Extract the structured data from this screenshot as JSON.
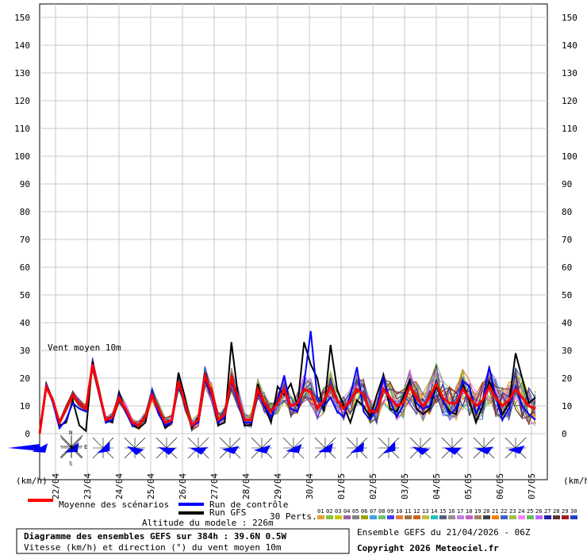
{
  "chart_data": {
    "type": "line",
    "title": "Diagramme des ensembles GEFS sur 384h : 39.6N 0.5W",
    "subtitle": "Vitesse (km/h) et direction (°) du vent moyen 10m",
    "series_label": "Vent moyen 10m",
    "altitude": "Altitude du modele : 226m",
    "run_info": "Ensemble GEFS du 21/04/2026 - 06Z",
    "copyright": "Copyright 2026 Meteociel.fr",
    "unit_left": "(km/h)",
    "unit_right": "(km/h)",
    "ylim": [
      0,
      150
    ],
    "y_ticks": [
      "0",
      "10",
      "20",
      "30",
      "40",
      "50",
      "60",
      "70",
      "80",
      "90",
      "100",
      "110",
      "120",
      "130",
      "140",
      "150"
    ],
    "x_ticks": [
      "22/04",
      "23/04",
      "24/04",
      "25/04",
      "26/04",
      "27/04",
      "28/04",
      "29/04",
      "30/04",
      "01/05",
      "02/05",
      "03/05",
      "04/05",
      "05/05",
      "06/05",
      "07/05"
    ],
    "x_tick_steps": [
      4,
      12,
      20,
      28,
      36,
      44,
      52,
      60,
      68,
      76,
      84,
      92,
      100,
      108,
      116,
      124
    ],
    "x_start_label": "21/04 06Z",
    "x_step_hours": 3,
    "grid": true,
    "legend": [
      {
        "label": "Moyenne des scénarios",
        "color": "#ff0000"
      },
      {
        "label": "Run de contrôle",
        "color": "#0000ff"
      },
      {
        "label": "Run GFS",
        "color": "#000000"
      }
    ],
    "perts_label": "30 Perts.",
    "pert_ids": [
      "01",
      "02",
      "03",
      "04",
      "05",
      "06",
      "07",
      "08",
      "09",
      "10",
      "11",
      "12",
      "13",
      "14",
      "15",
      "16",
      "17",
      "18",
      "19",
      "20",
      "21",
      "22",
      "23",
      "24",
      "25",
      "26",
      "27",
      "28",
      "29",
      "30"
    ],
    "pert_colors": [
      "#e8a033",
      "#88c040",
      "#c8c800",
      "#a060a0",
      "#808080",
      "#a0a000",
      "#40a0e0",
      "#70c070",
      "#4040ff",
      "#e08040",
      "#a07040",
      "#d06020",
      "#c0c040",
      "#20c0c0",
      "#506080",
      "#909090",
      "#c080e0",
      "#c060c0",
      "#a08060",
      "#404040",
      "#ff8000",
      "#4060c0",
      "#a0c040",
      "#ff80ff",
      "#60c060",
      "#c060ff",
      "#2020a0",
      "#603030",
      "#a02020",
      "#2040c0"
    ],
    "mean": [
      0,
      17,
      12,
      4,
      9,
      14,
      11,
      9,
      25,
      15,
      5,
      6,
      13,
      9,
      4,
      3,
      6,
      14,
      9,
      4,
      5,
      19,
      11,
      3,
      5,
      21,
      15,
      5,
      7,
      20,
      13,
      5,
      5,
      16,
      11,
      8,
      11,
      16,
      10,
      11,
      16,
      15,
      9,
      12,
      17,
      12,
      9,
      12,
      16,
      14,
      8,
      8,
      16,
      13,
      10,
      11,
      17,
      13,
      10,
      13,
      18,
      13,
      11,
      11,
      16,
      13,
      10,
      12,
      17,
      13,
      10,
      12,
      16,
      13,
      10,
      9
    ],
    "control": [
      1,
      18,
      11,
      2,
      5,
      11,
      9,
      8,
      24,
      14,
      4,
      5,
      14,
      8,
      3,
      3,
      6,
      15,
      7,
      3,
      4,
      18,
      10,
      3,
      4,
      20,
      14,
      4,
      6,
      19,
      12,
      4,
      4,
      15,
      10,
      6,
      12,
      21,
      9,
      8,
      18,
      37,
      13,
      10,
      13,
      8,
      6,
      14,
      24,
      8,
      5,
      10,
      20,
      12,
      6,
      10,
      18,
      11,
      9,
      10,
      19,
      12,
      7,
      9,
      19,
      17,
      7,
      12,
      24,
      13,
      5,
      9,
      17,
      10,
      7,
      5
    ],
    "gfs": [
      0,
      18,
      12,
      3,
      4,
      12,
      3,
      1,
      26,
      14,
      5,
      4,
      15,
      8,
      3,
      2,
      4,
      15,
      8,
      2,
      4,
      22,
      13,
      2,
      6,
      22,
      15,
      3,
      4,
      33,
      14,
      3,
      3,
      18,
      10,
      4,
      17,
      14,
      18,
      10,
      33,
      25,
      20,
      8,
      32,
      16,
      10,
      4,
      12,
      10,
      6,
      14,
      21,
      9,
      8,
      13,
      19,
      9,
      7,
      9,
      17,
      12,
      8,
      7,
      18,
      12,
      4,
      10,
      19,
      14,
      7,
      11,
      29,
      20,
      11,
      13
    ]
  },
  "wind_icon_names": [
    "wind-arrow-icon"
  ]
}
